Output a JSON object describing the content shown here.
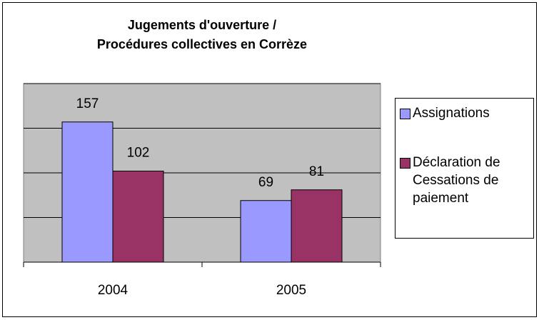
{
  "chart_data": {
    "type": "bar",
    "title": [
      "Jugements d'ouverture /",
      "Procédures collectives en Corrèze"
    ],
    "categories": [
      "2004",
      "2005"
    ],
    "series": [
      {
        "name": "Assignations",
        "color": "#9999ff",
        "values": [
          157,
          69
        ]
      },
      {
        "name": "Déclaration de Cessations de paiement",
        "color": "#993366",
        "values": [
          102,
          81
        ]
      }
    ],
    "ylim": [
      0,
      200
    ],
    "yticks": [
      0,
      50,
      100,
      150,
      200
    ],
    "grid": true,
    "legend": "right",
    "plot_background": "#c0c0c0"
  }
}
